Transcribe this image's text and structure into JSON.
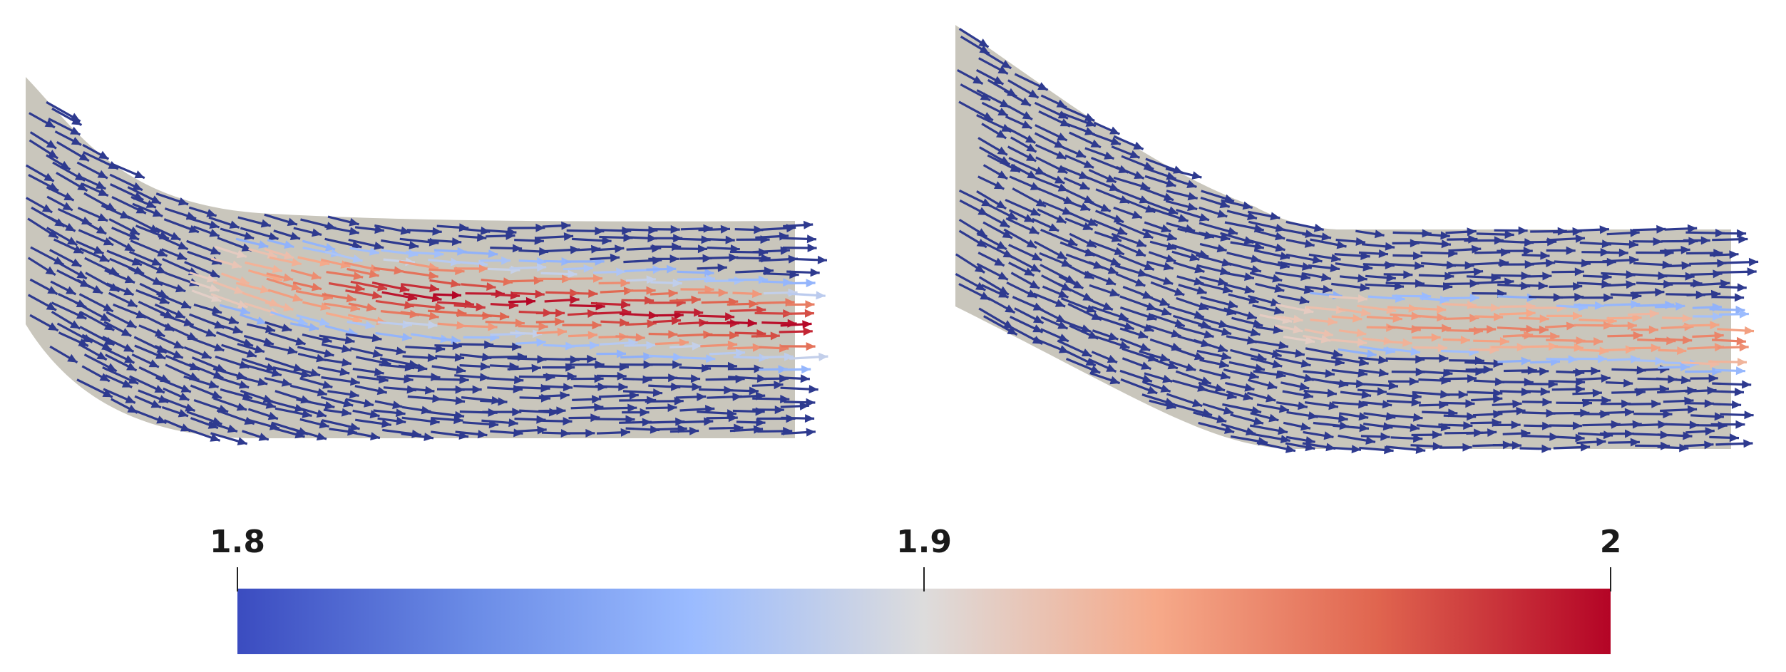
{
  "panels": [
    {
      "name": "left-vector-field",
      "hotspot_strength": 1.0
    },
    {
      "name": "right-vector-field",
      "hotspot_strength": 0.55
    }
  ],
  "colorbar": {
    "min": 1.8,
    "max": 2,
    "ticks": [
      "1.8",
      "1.9",
      "2"
    ],
    "colormap": "coolwarm",
    "stops": [
      "#3b4cc0",
      "#6a8be6",
      "#9abbff",
      "#dddcdc",
      "#f6a989",
      "#e0654f",
      "#b40426"
    ]
  },
  "colors": {
    "domain_fill": "#c9c6bc",
    "low_arrow": "#2e3a8f"
  }
}
